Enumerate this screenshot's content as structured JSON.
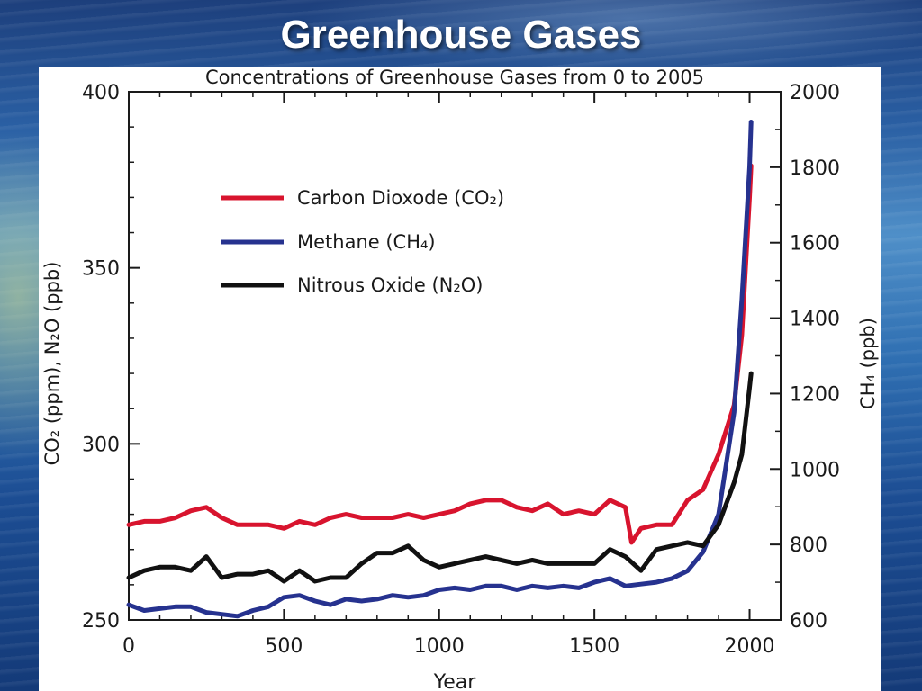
{
  "slide": {
    "title": "Greenhouse Gases"
  },
  "chart_data": {
    "type": "line",
    "title": "Concentrations of Greenhouse Gases from 0 to 2005",
    "xlabel": "Year",
    "ylabel_left": "CO₂ (ppm), N₂O (ppb)",
    "ylabel_right": "CH₄ (ppb)",
    "xlim": [
      0,
      2100
    ],
    "ylim_left": [
      250,
      400
    ],
    "ylim_right": [
      600,
      2000
    ],
    "x_ticks": [
      0,
      500,
      1000,
      1500,
      2000
    ],
    "y_ticks_left": [
      250,
      300,
      350,
      400
    ],
    "y_ticks_right": [
      600,
      800,
      1000,
      1200,
      1400,
      1600,
      1800,
      2000
    ],
    "grid": false,
    "legend_position": "top-left",
    "series": [
      {
        "name": "Carbon Dioxode (CO₂)",
        "axis": "left",
        "color": "#d8142e",
        "points": [
          [
            0,
            277
          ],
          [
            50,
            278
          ],
          [
            100,
            278
          ],
          [
            150,
            279
          ],
          [
            200,
            281
          ],
          [
            250,
            282
          ],
          [
            300,
            279
          ],
          [
            350,
            277
          ],
          [
            400,
            277
          ],
          [
            450,
            277
          ],
          [
            500,
            276
          ],
          [
            550,
            278
          ],
          [
            600,
            277
          ],
          [
            650,
            279
          ],
          [
            700,
            280
          ],
          [
            750,
            279
          ],
          [
            800,
            279
          ],
          [
            850,
            279
          ],
          [
            900,
            280
          ],
          [
            950,
            279
          ],
          [
            1000,
            280
          ],
          [
            1050,
            281
          ],
          [
            1100,
            283
          ],
          [
            1150,
            284
          ],
          [
            1200,
            284
          ],
          [
            1250,
            282
          ],
          [
            1300,
            281
          ],
          [
            1350,
            283
          ],
          [
            1400,
            280
          ],
          [
            1450,
            281
          ],
          [
            1500,
            280
          ],
          [
            1550,
            284
          ],
          [
            1600,
            282
          ],
          [
            1620,
            272
          ],
          [
            1650,
            276
          ],
          [
            1700,
            277
          ],
          [
            1750,
            277
          ],
          [
            1800,
            284
          ],
          [
            1850,
            287
          ],
          [
            1900,
            297
          ],
          [
            1950,
            311
          ],
          [
            1975,
            331
          ],
          [
            2000,
            370
          ],
          [
            2005,
            379
          ]
        ]
      },
      {
        "name": "Methane (CH₄)",
        "axis": "right",
        "color": "#26328f",
        "points": [
          [
            0,
            640
          ],
          [
            50,
            625
          ],
          [
            100,
            630
          ],
          [
            150,
            635
          ],
          [
            200,
            635
          ],
          [
            250,
            620
          ],
          [
            300,
            615
          ],
          [
            350,
            610
          ],
          [
            400,
            625
          ],
          [
            450,
            635
          ],
          [
            500,
            660
          ],
          [
            550,
            665
          ],
          [
            600,
            650
          ],
          [
            650,
            640
          ],
          [
            700,
            655
          ],
          [
            750,
            650
          ],
          [
            800,
            655
          ],
          [
            850,
            665
          ],
          [
            900,
            660
          ],
          [
            950,
            665
          ],
          [
            1000,
            680
          ],
          [
            1050,
            685
          ],
          [
            1100,
            680
          ],
          [
            1150,
            690
          ],
          [
            1200,
            690
          ],
          [
            1250,
            680
          ],
          [
            1300,
            690
          ],
          [
            1350,
            685
          ],
          [
            1400,
            690
          ],
          [
            1450,
            685
          ],
          [
            1500,
            700
          ],
          [
            1550,
            710
          ],
          [
            1600,
            690
          ],
          [
            1650,
            695
          ],
          [
            1700,
            700
          ],
          [
            1750,
            710
          ],
          [
            1800,
            730
          ],
          [
            1850,
            780
          ],
          [
            1900,
            880
          ],
          [
            1950,
            1150
          ],
          [
            1975,
            1450
          ],
          [
            2000,
            1800
          ],
          [
            2005,
            1920
          ]
        ]
      },
      {
        "name": "Nitrous Oxide (N₂O)",
        "axis": "left",
        "color": "#111111",
        "points": [
          [
            0,
            262
          ],
          [
            50,
            264
          ],
          [
            100,
            265
          ],
          [
            150,
            265
          ],
          [
            200,
            264
          ],
          [
            250,
            268
          ],
          [
            300,
            262
          ],
          [
            350,
            263
          ],
          [
            400,
            263
          ],
          [
            450,
            264
          ],
          [
            500,
            261
          ],
          [
            550,
            264
          ],
          [
            600,
            261
          ],
          [
            650,
            262
          ],
          [
            700,
            262
          ],
          [
            750,
            266
          ],
          [
            800,
            269
          ],
          [
            850,
            269
          ],
          [
            900,
            271
          ],
          [
            950,
            267
          ],
          [
            1000,
            265
          ],
          [
            1050,
            266
          ],
          [
            1100,
            267
          ],
          [
            1150,
            268
          ],
          [
            1200,
            267
          ],
          [
            1250,
            266
          ],
          [
            1300,
            267
          ],
          [
            1350,
            266
          ],
          [
            1400,
            266
          ],
          [
            1450,
            266
          ],
          [
            1500,
            266
          ],
          [
            1550,
            270
          ],
          [
            1600,
            268
          ],
          [
            1650,
            264
          ],
          [
            1700,
            270
          ],
          [
            1750,
            271
          ],
          [
            1800,
            272
          ],
          [
            1850,
            271
          ],
          [
            1900,
            277
          ],
          [
            1950,
            289
          ],
          [
            1975,
            297
          ],
          [
            2000,
            316
          ],
          [
            2005,
            320
          ]
        ]
      }
    ]
  }
}
